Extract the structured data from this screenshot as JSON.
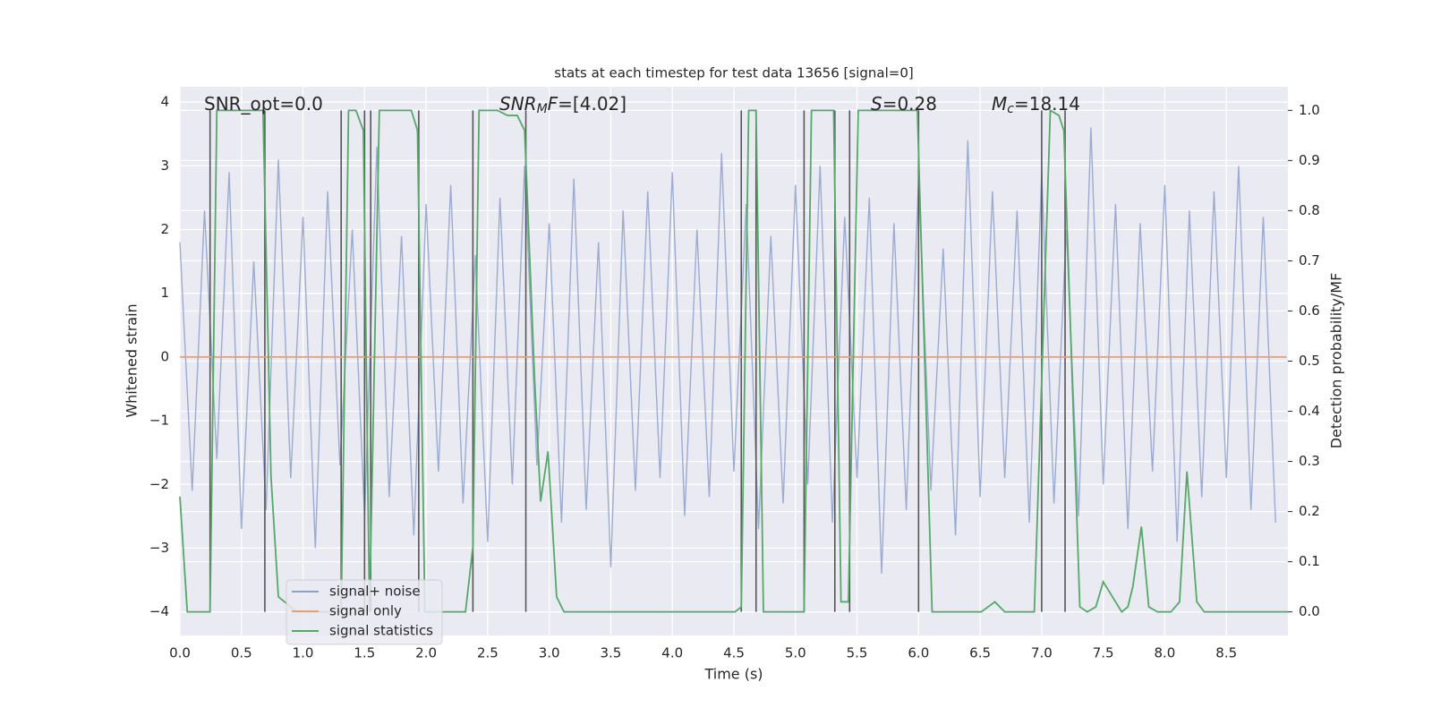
{
  "chart_data": {
    "type": "line",
    "title": "stats at each timestep for test data 13656 [signal=0]",
    "xlabel": "Time (s)",
    "ylabel": "Whitened strain",
    "y2label": "Detection probability/MF",
    "xlim": [
      0,
      9.0
    ],
    "ylim": [
      -4.37,
      4.24
    ],
    "y2lim": [
      -0.047,
      1.047
    ],
    "xticks": [
      {
        "value": 0,
        "label": "0.0"
      },
      0.5,
      {
        "value": 1,
        "label": "1.0"
      },
      1.5,
      {
        "value": 2,
        "label": "2.0"
      },
      2.5,
      {
        "value": 3,
        "label": "3.0"
      },
      3.5,
      {
        "value": 4,
        "label": "4.0"
      },
      4.5,
      {
        "value": 5,
        "label": "5.0"
      },
      5.5,
      {
        "value": 6,
        "label": "6.0"
      },
      6.5,
      {
        "value": 7,
        "label": "7.0"
      },
      7.5,
      {
        "value": 8,
        "label": "8.0"
      },
      8.5
    ],
    "yticks": [
      {
        "value": -4,
        "label": "−4"
      },
      {
        "value": -3,
        "label": "−3"
      },
      {
        "value": -2,
        "label": "−2"
      },
      {
        "value": -1,
        "label": "−1"
      },
      0,
      1,
      2,
      3,
      4
    ],
    "y2ticks": [
      {
        "value": 0,
        "label": "0.0"
      },
      0.1,
      0.2,
      0.3,
      0.4,
      0.5,
      0.6,
      0.7,
      0.8,
      0.9,
      {
        "value": 1,
        "label": "1.0"
      }
    ],
    "grid": true,
    "annotations": [
      {
        "text": "SNR_opt=0.0"
      },
      {
        "symbol": "SNR",
        "sub": "M",
        "rest": "F",
        "tail": "=[4.02]"
      },
      {
        "symbol": "S",
        "tail": "=0.28"
      },
      {
        "symbol": "M",
        "sub": "c",
        "tail": "=18.14"
      }
    ],
    "series": [
      {
        "name": "signal+ noise",
        "color": "#8da0cb",
        "x": [
          0.0,
          0.1,
          0.2,
          0.3,
          0.4,
          0.5,
          0.6,
          0.7,
          0.8,
          0.9,
          1.0,
          1.1,
          1.2,
          1.3,
          1.4,
          1.5,
          1.6,
          1.7,
          1.8,
          1.9,
          2.0,
          2.1,
          2.2,
          2.3,
          2.4,
          2.5,
          2.6,
          2.7,
          2.8,
          2.9,
          3.0,
          3.1,
          3.2,
          3.3,
          3.4,
          3.5,
          3.6,
          3.7,
          3.8,
          3.9,
          4.0,
          4.1,
          4.2,
          4.3,
          4.4,
          4.5,
          4.6,
          4.7,
          4.8,
          4.9,
          5.0,
          5.1,
          5.2,
          5.3,
          5.4,
          5.5,
          5.6,
          5.7,
          5.8,
          5.9,
          6.0,
          6.1,
          6.2,
          6.3,
          6.4,
          6.5,
          6.6,
          6.7,
          6.8,
          6.9,
          7.0,
          7.1,
          7.2,
          7.3,
          7.4,
          7.5,
          7.6,
          7.7,
          7.8,
          7.9,
          8.0,
          8.1,
          8.2,
          8.3,
          8.4,
          8.5,
          8.6,
          8.7,
          8.8,
          8.9
        ],
        "values": [
          1.8,
          -2.1,
          2.3,
          -1.6,
          2.9,
          -2.7,
          1.5,
          -2.4,
          3.1,
          -1.9,
          2.2,
          -3.0,
          2.6,
          -1.7,
          2.0,
          -2.5,
          3.3,
          -2.2,
          1.9,
          -2.8,
          2.4,
          -1.8,
          2.7,
          -2.3,
          1.6,
          -2.9,
          2.5,
          -2.0,
          3.0,
          -1.7,
          2.1,
          -2.6,
          2.8,
          -2.4,
          1.8,
          -3.3,
          2.3,
          -2.1,
          2.6,
          -1.9,
          2.9,
          -2.5,
          2.0,
          -2.2,
          3.2,
          -1.8,
          2.4,
          -2.7,
          1.9,
          -2.3,
          2.7,
          -2.0,
          3.0,
          -2.6,
          2.2,
          -1.9,
          2.5,
          -3.4,
          2.1,
          -2.4,
          2.8,
          -2.1,
          1.7,
          -2.8,
          3.4,
          -2.2,
          2.6,
          -1.9,
          2.3,
          -2.6,
          2.9,
          -2.3,
          2.0,
          -2.5,
          3.6,
          -2.0,
          2.4,
          -2.7,
          2.1,
          -1.8,
          2.7,
          -2.9,
          2.3,
          -2.2,
          2.6,
          -1.9,
          3.0,
          -2.4,
          2.2,
          -2.6
        ]
      },
      {
        "name": "signal only",
        "color": "#e5a07a",
        "x": [
          0.0,
          8.99
        ],
        "values": [
          0,
          0
        ]
      },
      {
        "name": "signal statistics",
        "color": "#55a868",
        "axis": "y2",
        "x": [
          0,
          0.06,
          0.245,
          0.3,
          0.675,
          0.74,
          0.8,
          0.95,
          1.31,
          1.37,
          1.43,
          1.49,
          1.54,
          1.62,
          1.88,
          1.93,
          1.99,
          2.32,
          2.38,
          2.43,
          2.58,
          2.66,
          2.74,
          2.8,
          2.88,
          2.93,
          2.99,
          3.06,
          3.12,
          4.51,
          4.56,
          4.62,
          4.68,
          4.74,
          5.07,
          5.13,
          5.31,
          5.37,
          5.43,
          5.51,
          5.99,
          6.11,
          6.51,
          6.62,
          6.7,
          6.94,
          7.07,
          7.14,
          7.18,
          7.31,
          7.37,
          7.44,
          7.5,
          7.65,
          7.7,
          7.74,
          7.81,
          7.87,
          7.94,
          8.05,
          8.12,
          8.18,
          8.26,
          8.32,
          9.0
        ],
        "values": [
          0.23,
          0,
          0,
          1.0,
          1.0,
          0.27,
          0.03,
          0,
          0,
          1.0,
          1.0,
          0.96,
          0,
          1.0,
          1.0,
          0.96,
          0,
          0,
          0.13,
          1.0,
          1.0,
          0.99,
          0.99,
          0.96,
          0.47,
          0.22,
          0.32,
          0.03,
          0,
          0,
          0.01,
          1.0,
          1.0,
          0,
          0,
          1.0,
          1.0,
          0.02,
          0.02,
          1.0,
          1.0,
          0,
          0,
          0.02,
          0,
          0,
          1.0,
          0.99,
          0.96,
          0.01,
          0,
          0.01,
          0.06,
          0,
          0.01,
          0.05,
          0.17,
          0.01,
          0,
          0,
          0.02,
          0.28,
          0.02,
          0,
          0
        ]
      }
    ],
    "vlines": {
      "color": "#555555",
      "x": [
        0.245,
        0.69,
        1.31,
        1.5,
        1.55,
        1.94,
        2.38,
        2.81,
        4.56,
        4.68,
        5.07,
        5.32,
        5.44,
        6.0,
        7.0,
        7.19
      ]
    }
  }
}
